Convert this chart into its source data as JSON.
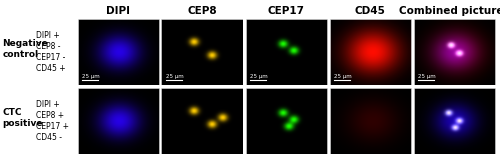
{
  "col_headers": [
    "DIPI",
    "CEP8",
    "CEP17",
    "CD45",
    "Combined pictures"
  ],
  "row_labels_main": [
    "Negative\ncontrol",
    "CTC\npositive"
  ],
  "row_sublabels": [
    "DIPI +\nCEP8 -\nCEP17 -\nCD45 +",
    "DIPI +\nCEP8 +\nCEP17 +\nCD45 -"
  ],
  "scale_bar_text": "25 μm",
  "figure_bg": "#ffffff",
  "header_fontsize": 7.5,
  "label_fontsize": 6.5,
  "sublabel_fontsize": 5.5
}
